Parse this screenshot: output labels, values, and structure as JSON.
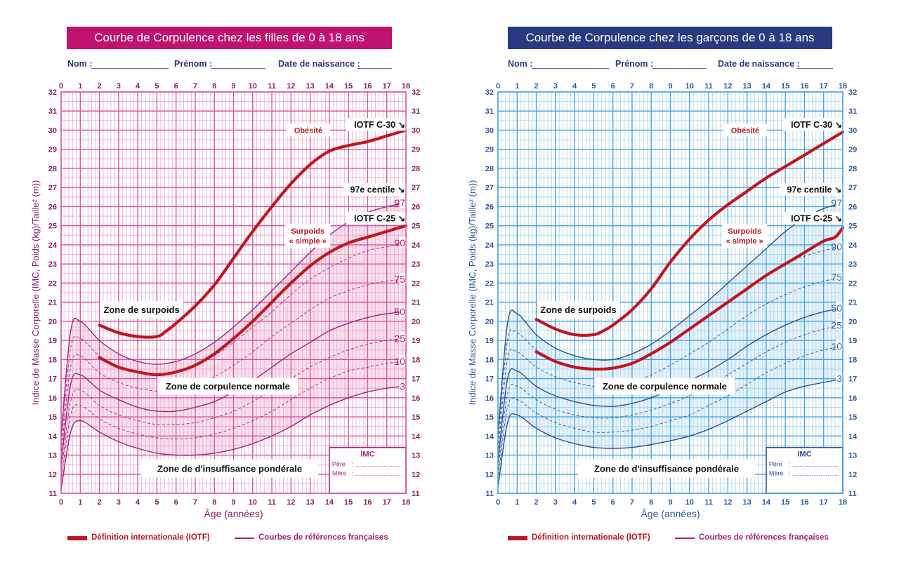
{
  "chart_data": [
    {
      "type": "line",
      "id": "girls",
      "title": "Courbe de Corpulence chez les filles de 0 à 18 ans",
      "xlabel": "Âge (années)",
      "ylabel": "Indice de Masse Corporelle  (IMC, Poids (kg)/Taille² (m))",
      "xlim": [
        0,
        18
      ],
      "ylim": [
        11,
        32
      ],
      "x_ticks": [
        0,
        1,
        2,
        3,
        4,
        5,
        6,
        7,
        8,
        9,
        10,
        11,
        12,
        13,
        14,
        15,
        16,
        17,
        18
      ],
      "y_ticks": [
        11,
        12,
        13,
        14,
        15,
        16,
        17,
        18,
        19,
        20,
        21,
        22,
        23,
        24,
        25,
        26,
        27,
        28,
        29,
        30,
        31,
        32
      ],
      "grid": true,
      "colors": {
        "title_bg": "#c0136f",
        "grid_major": "#d9559f",
        "grid_minor": "#eba6cb",
        "axis_text": "#8a1d6a",
        "french_curve": "#a3237a",
        "iotf_curve": "#c0161f",
        "shade": "#f6d5e6",
        "percentile_label": "#c0136f"
      },
      "series": [
        {
          "name": "P3",
          "style": "solid",
          "x": [
            0,
            0.5,
            1,
            2,
            3,
            4,
            5,
            6,
            7,
            8,
            9,
            10,
            11,
            12,
            13,
            14,
            15,
            16,
            17,
            18
          ],
          "y": [
            11.2,
            14.2,
            14.8,
            14.2,
            13.7,
            13.35,
            13.1,
            13.0,
            13.0,
            13.1,
            13.3,
            13.6,
            14.0,
            14.5,
            15.1,
            15.6,
            16.0,
            16.3,
            16.5,
            16.6
          ]
        },
        {
          "name": "P10",
          "style": "dashed",
          "x": [
            0,
            0.5,
            1,
            2,
            3,
            4,
            5,
            6,
            7,
            8,
            9,
            10,
            11,
            12,
            13,
            14,
            15,
            16,
            17,
            18
          ],
          "y": [
            11.6,
            15.1,
            15.6,
            14.9,
            14.4,
            14.1,
            13.9,
            13.85,
            13.9,
            14.1,
            14.4,
            14.8,
            15.3,
            15.9,
            16.5,
            17.0,
            17.4,
            17.6,
            17.8,
            17.9
          ]
        },
        {
          "name": "P25",
          "style": "dashed",
          "x": [
            0,
            0.5,
            1,
            2,
            3,
            4,
            5,
            6,
            7,
            8,
            9,
            10,
            11,
            12,
            13,
            14,
            15,
            16,
            17,
            18
          ],
          "y": [
            12.0,
            15.8,
            16.4,
            15.6,
            15.1,
            14.8,
            14.6,
            14.6,
            14.7,
            14.95,
            15.3,
            15.8,
            16.4,
            17.0,
            17.6,
            18.1,
            18.5,
            18.8,
            19.0,
            19.1
          ]
        },
        {
          "name": "P50",
          "style": "solid",
          "x": [
            0,
            0.5,
            1,
            2,
            3,
            4,
            5,
            6,
            7,
            8,
            9,
            10,
            11,
            12,
            13,
            14,
            15,
            16,
            17,
            18
          ],
          "y": [
            12.5,
            16.7,
            17.2,
            16.4,
            15.9,
            15.5,
            15.3,
            15.3,
            15.5,
            15.8,
            16.3,
            16.9,
            17.6,
            18.3,
            18.9,
            19.5,
            19.9,
            20.2,
            20.4,
            20.5
          ]
        },
        {
          "name": "P75",
          "style": "dashed",
          "x": [
            0,
            0.5,
            1,
            2,
            3,
            4,
            5,
            6,
            7,
            8,
            9,
            10,
            11,
            12,
            13,
            14,
            15,
            16,
            17,
            18
          ],
          "y": [
            13.0,
            17.6,
            18.2,
            17.3,
            16.8,
            16.5,
            16.35,
            16.4,
            16.7,
            17.1,
            17.7,
            18.4,
            19.2,
            19.9,
            20.6,
            21.2,
            21.6,
            21.9,
            22.1,
            22.2
          ]
        },
        {
          "name": "P90",
          "style": "dashed",
          "x": [
            0,
            0.5,
            1,
            2,
            3,
            4,
            5,
            6,
            7,
            8,
            9,
            10,
            11,
            12,
            13,
            14,
            15,
            16,
            17,
            18
          ],
          "y": [
            13.5,
            18.6,
            19.1,
            18.2,
            17.6,
            17.3,
            17.2,
            17.3,
            17.7,
            18.2,
            18.9,
            19.7,
            20.5,
            21.4,
            22.2,
            22.8,
            23.3,
            23.7,
            23.9,
            24.1
          ]
        },
        {
          "name": "P97",
          "style": "solid",
          "x": [
            0,
            0.5,
            1,
            2,
            3,
            4,
            5,
            6,
            7,
            8,
            9,
            10,
            11,
            12,
            13,
            14,
            15,
            16,
            17,
            18
          ],
          "y": [
            14.0,
            19.5,
            20.0,
            19.0,
            18.3,
            17.9,
            17.75,
            17.9,
            18.3,
            18.9,
            19.7,
            20.6,
            21.6,
            22.6,
            23.6,
            24.5,
            25.2,
            25.7,
            26.0,
            26.2
          ]
        },
        {
          "name": "IOTF C-25",
          "style": "iotf",
          "x": [
            2,
            3,
            4,
            5,
            6,
            7,
            8,
            9,
            10,
            11,
            12,
            13,
            14,
            15,
            16,
            17,
            18
          ],
          "y": [
            18.1,
            17.6,
            17.35,
            17.2,
            17.35,
            17.7,
            18.3,
            19.1,
            20.0,
            21.0,
            22.0,
            22.9,
            23.6,
            24.1,
            24.4,
            24.7,
            25.0
          ]
        },
        {
          "name": "IOTF C-30",
          "style": "iotf",
          "x": [
            2,
            3,
            4,
            5,
            5.5,
            6,
            7,
            8,
            9,
            10,
            11,
            12,
            13,
            14,
            15,
            16,
            17,
            18
          ],
          "y": [
            19.8,
            19.4,
            19.2,
            19.2,
            19.5,
            19.9,
            20.8,
            21.9,
            23.3,
            24.7,
            26.0,
            27.2,
            28.2,
            28.9,
            29.2,
            29.4,
            29.7,
            30.0
          ]
        }
      ],
      "percentile_labels": [
        "3",
        "10",
        "25",
        "50",
        "75",
        "90",
        "97"
      ],
      "annotations": {
        "iotf_c30": "IOTF C-30 ↘",
        "centile_97": "97e centile ↘",
        "iotf_c25": "IOTF C-25 ↘",
        "obesite": "Obésité",
        "surpoids_simple_1": "Surpoids",
        "surpoids_simple_2": "« simple »",
        "zone_surpoids": "Zone de surpoids",
        "zone_normale": "Zone de corpulence normale",
        "zone_insuffisance": "Zone de d'insuffisance pondérale"
      },
      "imc_box": {
        "title": "IMC",
        "pere": "Père",
        "mere": "Mère",
        "sep": ":"
      }
    },
    {
      "type": "line",
      "id": "boys",
      "title": "Courbe de Corpulence chez les garçons de 0 à 18 ans",
      "xlabel": "Âge (années)",
      "ylabel": "Indice de Masse Corporelle  (IMC, Poids (kg)/Taille² (m))",
      "xlim": [
        0,
        18
      ],
      "ylim": [
        11,
        32
      ],
      "x_ticks": [
        0,
        1,
        2,
        3,
        4,
        5,
        6,
        7,
        8,
        9,
        10,
        11,
        12,
        13,
        14,
        15,
        16,
        17,
        18
      ],
      "y_ticks": [
        11,
        12,
        13,
        14,
        15,
        16,
        17,
        18,
        19,
        20,
        21,
        22,
        23,
        24,
        25,
        26,
        27,
        28,
        29,
        30,
        31,
        32
      ],
      "grid": true,
      "colors": {
        "title_bg": "#2a3a80",
        "grid_major": "#4aa3df",
        "grid_minor": "#a9d3f0",
        "axis_text": "#2b5a9e",
        "french_curve": "#2c4f95",
        "iotf_curve": "#c0161f",
        "shade": "#dcedf9",
        "percentile_label": "#2c6ab5"
      },
      "series": [
        {
          "name": "P3",
          "style": "solid",
          "x": [
            0,
            0.5,
            1,
            2,
            3,
            4,
            5,
            6,
            7,
            8,
            9,
            10,
            11,
            12,
            13,
            14,
            15,
            16,
            17,
            18
          ],
          "y": [
            11.3,
            14.7,
            15.1,
            14.4,
            13.9,
            13.6,
            13.4,
            13.35,
            13.4,
            13.55,
            13.75,
            14.0,
            14.35,
            14.8,
            15.3,
            15.8,
            16.3,
            16.6,
            16.8,
            17.0
          ]
        },
        {
          "name": "P10",
          "style": "dashed",
          "x": [
            0,
            0.5,
            1,
            2,
            3,
            4,
            5,
            6,
            7,
            8,
            9,
            10,
            11,
            12,
            13,
            14,
            15,
            16,
            17,
            18
          ],
          "y": [
            11.7,
            15.5,
            15.9,
            15.2,
            14.7,
            14.4,
            14.2,
            14.2,
            14.3,
            14.5,
            14.8,
            15.1,
            15.6,
            16.1,
            16.7,
            17.3,
            17.8,
            18.2,
            18.5,
            18.7
          ]
        },
        {
          "name": "P25",
          "style": "dashed",
          "x": [
            0,
            0.5,
            1,
            2,
            3,
            4,
            5,
            6,
            7,
            8,
            9,
            10,
            11,
            12,
            13,
            14,
            15,
            16,
            17,
            18
          ],
          "y": [
            12.1,
            16.2,
            16.6,
            15.9,
            15.4,
            15.1,
            14.95,
            14.95,
            15.1,
            15.35,
            15.7,
            16.1,
            16.6,
            17.2,
            17.8,
            18.4,
            18.9,
            19.3,
            19.6,
            19.8
          ]
        },
        {
          "name": "P50",
          "style": "solid",
          "x": [
            0,
            0.5,
            1,
            2,
            3,
            4,
            5,
            6,
            7,
            8,
            9,
            10,
            11,
            12,
            13,
            14,
            15,
            16,
            17,
            18
          ],
          "y": [
            12.6,
            17.0,
            17.4,
            16.6,
            16.1,
            15.8,
            15.6,
            15.55,
            15.7,
            16.0,
            16.4,
            16.9,
            17.4,
            18.0,
            18.7,
            19.3,
            19.8,
            20.2,
            20.5,
            20.7
          ]
        },
        {
          "name": "P75",
          "style": "dashed",
          "x": [
            0,
            0.5,
            1,
            2,
            3,
            4,
            5,
            6,
            7,
            8,
            9,
            10,
            11,
            12,
            13,
            14,
            15,
            16,
            17,
            18
          ],
          "y": [
            13.1,
            18.0,
            18.4,
            17.6,
            17.1,
            16.8,
            16.6,
            16.6,
            16.8,
            17.2,
            17.7,
            18.3,
            18.9,
            19.6,
            20.3,
            20.9,
            21.4,
            21.8,
            22.1,
            22.3
          ]
        },
        {
          "name": "P90",
          "style": "dashed",
          "x": [
            0,
            0.5,
            1,
            2,
            3,
            4,
            5,
            6,
            7,
            8,
            9,
            10,
            11,
            12,
            13,
            14,
            15,
            16,
            17,
            18
          ],
          "y": [
            13.6,
            19.0,
            19.4,
            18.5,
            17.9,
            17.6,
            17.45,
            17.5,
            17.8,
            18.3,
            18.9,
            19.6,
            20.3,
            21.0,
            21.7,
            22.4,
            23.0,
            23.4,
            23.7,
            23.9
          ]
        },
        {
          "name": "P97",
          "style": "solid",
          "x": [
            0,
            0.5,
            1,
            2,
            3,
            4,
            5,
            6,
            7,
            8,
            9,
            10,
            11,
            12,
            13,
            14,
            15,
            16,
            17,
            18
          ],
          "y": [
            14.1,
            19.9,
            20.4,
            19.3,
            18.6,
            18.2,
            18.0,
            18.0,
            18.3,
            18.8,
            19.5,
            20.3,
            21.1,
            22.0,
            22.9,
            23.8,
            24.7,
            25.4,
            25.9,
            26.2
          ]
        },
        {
          "name": "IOTF C-25",
          "style": "iotf",
          "x": [
            2,
            3,
            4,
            5,
            6,
            7,
            8,
            9,
            10,
            11,
            12,
            13,
            14,
            15,
            16,
            17,
            17.6,
            18
          ],
          "y": [
            18.4,
            17.9,
            17.6,
            17.5,
            17.55,
            17.8,
            18.3,
            18.9,
            19.6,
            20.3,
            21.0,
            21.7,
            22.4,
            23.0,
            23.6,
            24.2,
            24.4,
            24.9
          ]
        },
        {
          "name": "IOTF C-30",
          "style": "iotf",
          "x": [
            2,
            3,
            4,
            5,
            5.5,
            6,
            7,
            8,
            9,
            10,
            11,
            12,
            13,
            14,
            15,
            16,
            17,
            18
          ],
          "y": [
            20.1,
            19.6,
            19.3,
            19.3,
            19.5,
            19.8,
            20.6,
            21.7,
            23.1,
            24.3,
            25.3,
            26.1,
            26.8,
            27.5,
            28.1,
            28.7,
            29.3,
            29.9
          ]
        }
      ],
      "percentile_labels": [
        "3",
        "10",
        "25",
        "50",
        "75",
        "90",
        "97"
      ],
      "annotations": {
        "iotf_c30": "IOTF C-30 ↘",
        "centile_97": "97e centile ↘",
        "iotf_c25": "IOTF C-25 ↘",
        "obesite": "Obésité",
        "surpoids_simple_1": "Surpoids",
        "surpoids_simple_2": "« simple »",
        "zone_surpoids": "Zone de surpoids",
        "zone_normale": "Zone de corpulence normale",
        "zone_insuffisance": "Zone de d'insuffisance pondérale"
      },
      "imc_box": {
        "title": "IMC",
        "pere": "Père",
        "mere": "Mère",
        "sep": ":"
      }
    }
  ],
  "form": {
    "nom": "Nom :",
    "prenom": "Prénom :",
    "date": "Date de naissance :"
  },
  "legend": {
    "iotf": "Définition internationale (IOTF)",
    "french": "Courbes de références françaises",
    "iotf_color": "#c0161f",
    "french_color": "#a3237a"
  }
}
